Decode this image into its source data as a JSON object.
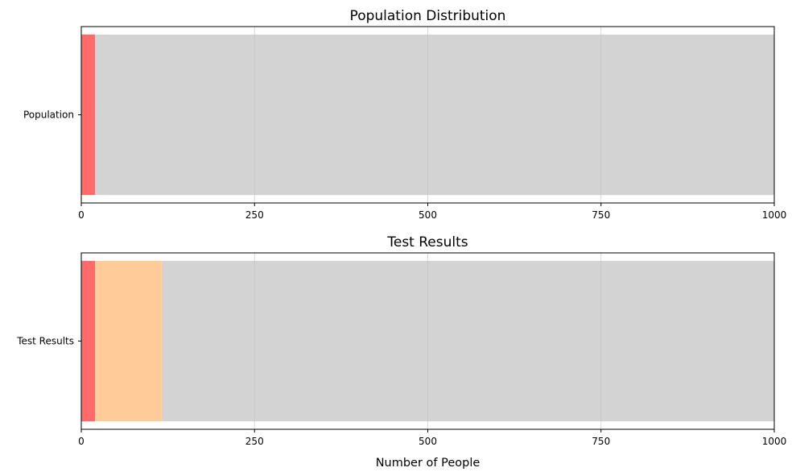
{
  "chart_data": [
    {
      "type": "bar",
      "orientation": "horizontal",
      "stacked": true,
      "title": "Population Distribution",
      "xlabel": "",
      "ylabel": "",
      "categories": [
        "Population"
      ],
      "series": [
        {
          "values": [
            20
          ],
          "color": "#ff6b6b"
        },
        {
          "values": [
            980
          ],
          "color": "#d3d3d3"
        }
      ],
      "xlim": [
        0,
        1000
      ],
      "xticks": [
        0,
        250,
        500,
        750,
        1000
      ],
      "grid": "x"
    },
    {
      "type": "bar",
      "orientation": "horizontal",
      "stacked": true,
      "title": "Test Results",
      "xlabel": "Number of People",
      "ylabel": "",
      "categories": [
        "Test Results"
      ],
      "series": [
        {
          "values": [
            20
          ],
          "color": "#ff6b6b"
        },
        {
          "values": [
            96
          ],
          "color": "#ffcc99"
        },
        {
          "values": [
            884
          ],
          "color": "#d3d3d3"
        }
      ],
      "xlim": [
        0,
        1000
      ],
      "xticks": [
        0,
        250,
        500,
        750,
        1000
      ],
      "grid": "x"
    }
  ]
}
